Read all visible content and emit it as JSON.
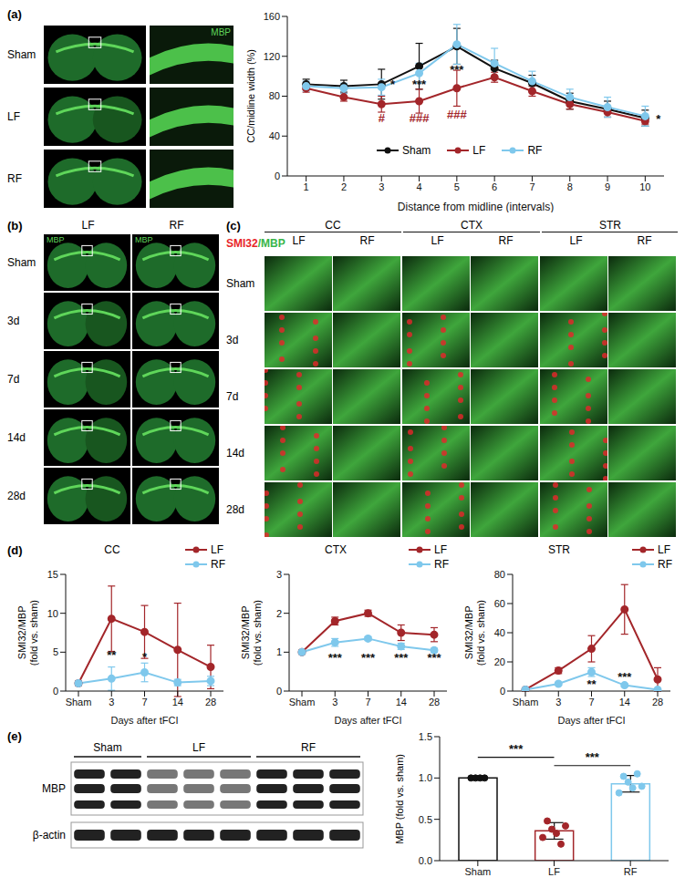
{
  "chart_data": [
    {
      "panel": "(a)",
      "type": "line",
      "x_label": "Distance from midline (intervals)",
      "y_label": "CC/midline width (%)",
      "x": [
        1,
        2,
        3,
        4,
        5,
        6,
        7,
        8,
        9,
        10
      ],
      "xlim": [
        0.5,
        10.5
      ],
      "xticks": [
        1,
        2,
        3,
        4,
        5,
        6,
        7,
        8,
        9,
        10
      ],
      "ylim": [
        0,
        160
      ],
      "yticks": [
        0,
        40,
        80,
        120,
        160
      ],
      "legend": "bottom",
      "series": [
        {
          "name": "Sham",
          "color": "#111111",
          "marker": "circle",
          "values": [
            92,
            90,
            92,
            110,
            130,
            108,
            93,
            75,
            67,
            58
          ],
          "error": [
            5,
            6,
            15,
            23,
            18,
            8,
            8,
            8,
            8,
            8
          ]
        },
        {
          "name": "LF",
          "color": "#a3262a",
          "marker": "circle",
          "values": [
            88,
            79,
            72,
            75,
            88,
            99,
            85,
            72,
            64,
            55
          ],
          "error": [
            4,
            4,
            8,
            12,
            18,
            5,
            5,
            5,
            5,
            3
          ]
        },
        {
          "name": "RF",
          "color": "#7fc8ec",
          "marker": "circle",
          "values": [
            90,
            88,
            89,
            103,
            132,
            113,
            95,
            79,
            69,
            60
          ],
          "error": [
            5,
            5,
            8,
            10,
            20,
            15,
            10,
            8,
            10,
            10
          ]
        }
      ],
      "annotations": [
        {
          "text": "*",
          "x": 3.3,
          "y": 92,
          "color": "#111111"
        },
        {
          "text": "***",
          "x": 4,
          "y": 92,
          "color": "#111111"
        },
        {
          "text": "***",
          "x": 5,
          "y": 107,
          "color": "#111111"
        },
        {
          "text": "#",
          "x": 3,
          "y": 58,
          "color": "#a3262a"
        },
        {
          "text": "###",
          "x": 4,
          "y": 58,
          "color": "#a3262a"
        },
        {
          "text": "###",
          "x": 5,
          "y": 62,
          "color": "#a3262a"
        },
        {
          "text": "*",
          "x": 10.35,
          "y": 57,
          "color": "#111111"
        }
      ]
    },
    {
      "panel": "(d)",
      "type": "line",
      "title": "CC",
      "x_label": "Days after tFCI",
      "y_label": [
        "SMI32/MBP",
        "(fold vs. sham)"
      ],
      "categories": [
        "Sham",
        "3",
        "7",
        "14",
        "28"
      ],
      "ylim": [
        0,
        15
      ],
      "yticks": [
        0,
        5,
        10,
        15
      ],
      "legend": "top-right",
      "series": [
        {
          "name": "LF",
          "color": "#a3262a",
          "marker": "circle",
          "values": [
            1,
            9.3,
            7.6,
            5.3,
            3.1
          ],
          "error": [
            0.3,
            4.2,
            3.4,
            6,
            2.8
          ]
        },
        {
          "name": "RF",
          "color": "#7fc8ec",
          "marker": "circle",
          "values": [
            1,
            1.6,
            2.4,
            1.1,
            1.3
          ],
          "error": [
            0.3,
            1.5,
            1.2,
            0.4,
            0.6
          ]
        }
      ],
      "annotations": [
        {
          "text": "**",
          "x": "3",
          "y": 4.6,
          "color": "#111111"
        },
        {
          "text": "*",
          "x": "7",
          "y": 4.4,
          "color": "#111111"
        }
      ]
    },
    {
      "type": "line",
      "title": "CTX",
      "x_label": "Days after tFCI",
      "y_label": [
        "SMI32/MBP",
        "(fold vs. sham)"
      ],
      "categories": [
        "Sham",
        "3",
        "7",
        "14",
        "28"
      ],
      "ylim": [
        0,
        3
      ],
      "yticks": [
        0,
        1,
        2,
        3
      ],
      "legend": "top-right",
      "series": [
        {
          "name": "LF",
          "color": "#a3262a",
          "marker": "circle",
          "values": [
            1,
            1.8,
            2.0,
            1.5,
            1.45
          ],
          "error": [
            0.05,
            0.1,
            0.08,
            0.2,
            0.18
          ]
        },
        {
          "name": "RF",
          "color": "#7fc8ec",
          "marker": "circle",
          "values": [
            1,
            1.25,
            1.35,
            1.15,
            1.05
          ],
          "error": [
            0.05,
            0.1,
            0.05,
            0.08,
            0.05
          ]
        }
      ],
      "annotations": [
        {
          "text": "***",
          "x": "3",
          "y": 0.85,
          "color": "#111111"
        },
        {
          "text": "***",
          "x": "7",
          "y": 0.85,
          "color": "#111111"
        },
        {
          "text": "***",
          "x": "14",
          "y": 0.85,
          "color": "#111111"
        },
        {
          "text": "***",
          "x": "28",
          "y": 0.85,
          "color": "#111111"
        }
      ]
    },
    {
      "type": "line",
      "title": "STR",
      "x_label": "Days after tFCI",
      "y_label": [
        "SMI32/MBP",
        "(fold vs. sham)"
      ],
      "categories": [
        "Sham",
        "3",
        "7",
        "14",
        "28"
      ],
      "ylim": [
        0,
        80
      ],
      "yticks": [
        0,
        20,
        40,
        60,
        80
      ],
      "legend": "top-right",
      "series": [
        {
          "name": "LF",
          "color": "#a3262a",
          "marker": "circle",
          "values": [
            1,
            14,
            29,
            56,
            8
          ],
          "error": [
            1,
            2,
            9,
            17,
            8
          ]
        },
        {
          "name": "RF",
          "color": "#7fc8ec",
          "marker": "circle",
          "values": [
            1,
            5,
            13,
            4,
            1
          ],
          "error": [
            0.5,
            1,
            3,
            1,
            0.5
          ]
        }
      ],
      "annotations": [
        {
          "text": "**",
          "x": "7",
          "y": 5,
          "color": "#111111"
        },
        {
          "text": "***",
          "x": "14",
          "y": 10,
          "color": "#111111"
        }
      ]
    },
    {
      "panel": "(e)",
      "type": "bar",
      "y_label": "MBP (fold vs. sham)",
      "categories": [
        "Sham",
        "LF",
        "RF"
      ],
      "values": [
        1.0,
        0.36,
        0.93
      ],
      "error": [
        0.01,
        0.1,
        0.1
      ],
      "colors": [
        "#111111",
        "#a3262a",
        "#7fc8ec"
      ],
      "points": [
        [
          1,
          1,
          1,
          1
        ],
        [
          0.28,
          0.48,
          0.38,
          0.33,
          0.2,
          0.42
        ],
        [
          0.82,
          1.02,
          0.95,
          0.88,
          1.05,
          0.9
        ]
      ],
      "ylim": [
        0,
        1.5
      ],
      "yticks": [
        {
          "value": 0,
          "label": "0.0"
        },
        {
          "value": 0.5,
          "label": "0.5"
        },
        {
          "value": 1,
          "label": "1.0"
        },
        {
          "value": 1.5,
          "label": "1.5"
        }
      ],
      "comparisons": [
        {
          "from": "Sham",
          "to": "LF",
          "y": 1.25,
          "text": "***"
        },
        {
          "from": "LF",
          "to": "RF",
          "y": 1.15,
          "text": "***"
        }
      ]
    }
  ],
  "image_panels": {
    "a": {
      "rows": [
        "Sham",
        "LF",
        "RF"
      ],
      "stain": "MBP"
    },
    "b": {
      "panel": "(b)",
      "columns": [
        "LF",
        "RF"
      ],
      "rows": [
        "Sham",
        "3d",
        "7d",
        "14d",
        "28d"
      ],
      "stain": "MBP"
    },
    "c": {
      "panel": "(c)",
      "title_parts": [
        {
          "text": "SMI32",
          "color": "#e8262a"
        },
        {
          "text": "/MBP",
          "color": "#39b54a"
        }
      ],
      "regions": [
        "CC",
        "CTX",
        "STR"
      ],
      "columns": [
        "LF",
        "RF"
      ],
      "rows": [
        "Sham",
        "3d",
        "7d",
        "14d",
        "28d"
      ]
    },
    "e": {
      "bands": [
        "MBP",
        "β-actin"
      ],
      "groups": [
        {
          "label": "Sham",
          "lanes": 2
        },
        {
          "label": "LF",
          "lanes": 3
        },
        {
          "label": "RF",
          "lanes": 3
        }
      ]
    }
  }
}
